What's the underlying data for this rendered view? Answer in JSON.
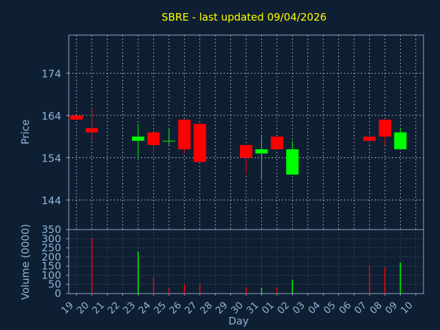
{
  "chart_data": {
    "type": "candlestick",
    "title": "SBRE - last updated 09/04/2026",
    "xlabel": "Day",
    "x_ticks": [
      "19",
      "20",
      "21",
      "22",
      "23",
      "24",
      "25",
      "26",
      "27",
      "28",
      "29",
      "30",
      "31",
      "01",
      "02",
      "03",
      "04",
      "05",
      "06",
      "07",
      "08",
      "09",
      "10"
    ],
    "grid": true,
    "colors": {
      "up": "#00ff00",
      "down": "#ff0000",
      "background": "#0f1f33",
      "grid": "#ffffff",
      "text": "#8fb3d9",
      "title": "#ffff00"
    },
    "price_panel": {
      "ylabel": "Price",
      "ylim": [
        137,
        183
      ],
      "yticks": [
        144,
        154,
        164,
        174
      ],
      "candles": [
        {
          "day": "19",
          "open": 164.0,
          "high": 164.0,
          "low": 163.0,
          "close": 163.0
        },
        {
          "day": "20",
          "open": 161.0,
          "high": 166.0,
          "low": 158.0,
          "close": 160.0
        },
        {
          "day": "23",
          "open": 158.0,
          "high": 162.0,
          "low": 154.0,
          "close": 159.0
        },
        {
          "day": "24",
          "open": 160.0,
          "high": 160.0,
          "low": 154.0,
          "close": 157.0
        },
        {
          "day": "25",
          "open": 158.0,
          "high": 161.0,
          "low": 157.0,
          "close": 158.0
        },
        {
          "day": "26",
          "open": 163.0,
          "high": 163.0,
          "low": 155.0,
          "close": 156.0
        },
        {
          "day": "27",
          "open": 162.0,
          "high": 162.0,
          "low": 153.0,
          "close": 153.0
        },
        {
          "day": "30",
          "open": 157.0,
          "high": 157.0,
          "low": 150.0,
          "close": 154.0
        },
        {
          "day": "31",
          "open": 155.0,
          "high": 159.0,
          "low": 149.0,
          "close": 156.0
        },
        {
          "day": "01",
          "open": 159.0,
          "high": 159.0,
          "low": 156.0,
          "close": 156.0
        },
        {
          "day": "02",
          "open": 150.0,
          "high": 158.0,
          "low": 150.0,
          "close": 156.0
        },
        {
          "day": "07",
          "open": 159.0,
          "high": 160.0,
          "low": 157.0,
          "close": 158.0
        },
        {
          "day": "08",
          "open": 163.0,
          "high": 163.0,
          "low": 157.0,
          "close": 159.0
        },
        {
          "day": "09",
          "open": 156.0,
          "high": 161.0,
          "low": 156.0,
          "close": 160.0
        }
      ]
    },
    "volume_panel": {
      "ylabel": "Volume (0000)",
      "ylim": [
        0,
        350
      ],
      "yticks": [
        0,
        50,
        100,
        150,
        200,
        250,
        300,
        350
      ],
      "bars": [
        {
          "day": "20",
          "value": 305,
          "dir": "down"
        },
        {
          "day": "23",
          "value": 230,
          "dir": "up"
        },
        {
          "day": "24",
          "value": 90,
          "dir": "down"
        },
        {
          "day": "25",
          "value": 30,
          "dir": "down"
        },
        {
          "day": "26",
          "value": 50,
          "dir": "down"
        },
        {
          "day": "27",
          "value": 55,
          "dir": "down"
        },
        {
          "day": "30",
          "value": 35,
          "dir": "down"
        },
        {
          "day": "31",
          "value": 30,
          "dir": "up"
        },
        {
          "day": "01",
          "value": 35,
          "dir": "down"
        },
        {
          "day": "02",
          "value": 75,
          "dir": "up"
        },
        {
          "day": "07",
          "value": 155,
          "dir": "down"
        },
        {
          "day": "08",
          "value": 145,
          "dir": "down"
        },
        {
          "day": "09",
          "value": 170,
          "dir": "up"
        }
      ]
    }
  }
}
